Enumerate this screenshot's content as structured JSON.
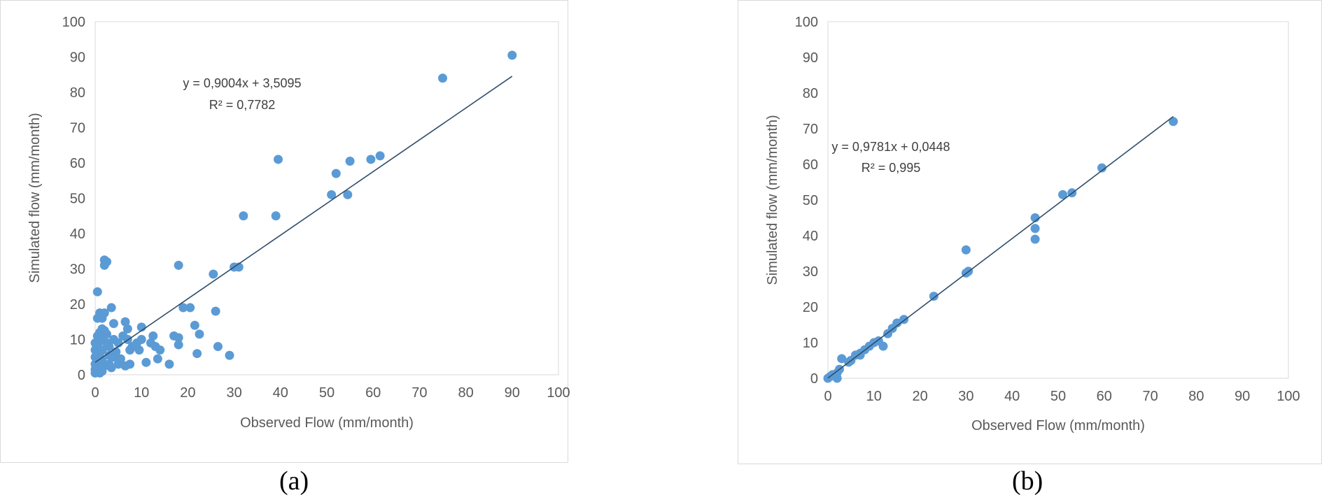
{
  "captions": [
    "(a)",
    "(b)"
  ],
  "colors": {
    "marker": "#5b9bd5",
    "trendline": "#2e4d6b",
    "plot_border": "#d9d9d9",
    "text": "#595959"
  },
  "chart_data": [
    {
      "type": "scatter",
      "title": "",
      "xlabel": "Observed Flow (mm/month)",
      "ylabel": "Simulated flow (mm/month)",
      "xlim": [
        0,
        100
      ],
      "ylim": [
        0,
        100
      ],
      "xticks": [
        "0",
        "10",
        "20",
        "30",
        "40",
        "50",
        "60",
        "70",
        "80",
        "90",
        "100"
      ],
      "yticks": [
        "0",
        "10",
        "20",
        "30",
        "40",
        "50",
        "60",
        "70",
        "80",
        "90",
        "100"
      ],
      "grid": false,
      "trendline": {
        "slope": 0.9004,
        "intercept": 3.5095,
        "x_range": [
          0,
          90
        ]
      },
      "annotations": [
        "y = 0,9004x + 3,5095",
        "R² = 0,7782"
      ],
      "points": [
        [
          90,
          90.5
        ],
        [
          75,
          84
        ],
        [
          61.5,
          62
        ],
        [
          59.5,
          61
        ],
        [
          55,
          60.5
        ],
        [
          52,
          57
        ],
        [
          51,
          51
        ],
        [
          54.5,
          51
        ],
        [
          39.5,
          61
        ],
        [
          39,
          45
        ],
        [
          32,
          45
        ],
        [
          30,
          30.5
        ],
        [
          31,
          30.5
        ],
        [
          25.5,
          28.5
        ],
        [
          18,
          31
        ],
        [
          26,
          18
        ],
        [
          26.5,
          8
        ],
        [
          29,
          5.5
        ],
        [
          20.5,
          19
        ],
        [
          19,
          19
        ],
        [
          21.5,
          14
        ],
        [
          22,
          6
        ],
        [
          22.5,
          11.5
        ],
        [
          18,
          10.5
        ],
        [
          17,
          11
        ],
        [
          18,
          8.5
        ],
        [
          16,
          3
        ],
        [
          14,
          7
        ],
        [
          13,
          8
        ],
        [
          13.5,
          4.5
        ],
        [
          12.5,
          11
        ],
        [
          12,
          9
        ],
        [
          11,
          3.5
        ],
        [
          10,
          13.5
        ],
        [
          10,
          10
        ],
        [
          9,
          9
        ],
        [
          9.5,
          7
        ],
        [
          8,
          8
        ],
        [
          7.5,
          7
        ],
        [
          7,
          13
        ],
        [
          7,
          10
        ],
        [
          6.5,
          15
        ],
        [
          6,
          11
        ],
        [
          7.5,
          3
        ],
        [
          6.5,
          2.5
        ],
        [
          5.5,
          4.5
        ],
        [
          5,
          9
        ],
        [
          5,
          3
        ],
        [
          4.5,
          6.5
        ],
        [
          4,
          14.5
        ],
        [
          3.5,
          19
        ],
        [
          4,
          10
        ],
        [
          4,
          5
        ],
        [
          3.5,
          2
        ],
        [
          3,
          8
        ],
        [
          3,
          5.5
        ],
        [
          3,
          3
        ],
        [
          2.5,
          11.5
        ],
        [
          2.5,
          9
        ],
        [
          2,
          12.5
        ],
        [
          2,
          31
        ],
        [
          2,
          32.5
        ],
        [
          2.5,
          32
        ],
        [
          2,
          17.5
        ],
        [
          1.5,
          16
        ],
        [
          1.5,
          13
        ],
        [
          1.5,
          10
        ],
        [
          1.5,
          7
        ],
        [
          1.5,
          4
        ],
        [
          1,
          17.5
        ],
        [
          1,
          12
        ],
        [
          1,
          9.5
        ],
        [
          1,
          6
        ],
        [
          1,
          3
        ],
        [
          0.5,
          23.5
        ],
        [
          0.5,
          16
        ],
        [
          0.5,
          11
        ],
        [
          0.5,
          8.5
        ],
        [
          0.5,
          6
        ],
        [
          0.5,
          3.5
        ],
        [
          0.5,
          1
        ],
        [
          0,
          9
        ],
        [
          0,
          7
        ],
        [
          0,
          5
        ],
        [
          0,
          3
        ],
        [
          0,
          1.5
        ],
        [
          0,
          0.5
        ],
        [
          1.5,
          1
        ],
        [
          2,
          2.5
        ],
        [
          1,
          0.5
        ]
      ]
    },
    {
      "type": "scatter",
      "title": "",
      "xlabel": "Observed Flow (mm/month)",
      "ylabel": "Simulated flow (mm/month)",
      "xlim": [
        0,
        100
      ],
      "ylim": [
        0,
        100
      ],
      "xticks": [
        "0",
        "10",
        "20",
        "30",
        "40",
        "50",
        "60",
        "70",
        "80",
        "90",
        "100"
      ],
      "yticks": [
        "0",
        "10",
        "20",
        "30",
        "40",
        "50",
        "60",
        "70",
        "80",
        "90",
        "100"
      ],
      "grid": false,
      "trendline": {
        "slope": 0.9781,
        "intercept": 0.0448,
        "x_range": [
          0,
          75
        ]
      },
      "annotations": [
        "y = 0,9781x + 0,0448",
        "R² = 0,995"
      ],
      "points": [
        [
          75,
          72
        ],
        [
          59.5,
          59
        ],
        [
          53,
          52
        ],
        [
          51,
          51.5
        ],
        [
          45,
          45
        ],
        [
          45,
          42
        ],
        [
          45,
          39
        ],
        [
          30,
          36
        ],
        [
          30.5,
          30
        ],
        [
          30,
          29.5
        ],
        [
          23,
          23
        ],
        [
          16.5,
          16.5
        ],
        [
          15,
          15.5
        ],
        [
          14,
          14
        ],
        [
          13,
          12.5
        ],
        [
          12,
          9
        ],
        [
          11,
          10.5
        ],
        [
          10,
          10
        ],
        [
          9,
          9
        ],
        [
          8,
          8
        ],
        [
          7,
          7
        ],
        [
          7,
          6.5
        ],
        [
          6,
          6.5
        ],
        [
          5,
          5
        ],
        [
          4.5,
          4.5
        ],
        [
          3,
          5.5
        ],
        [
          2.5,
          2.5
        ],
        [
          2,
          1.5
        ],
        [
          1.5,
          1
        ],
        [
          1,
          1
        ],
        [
          0.5,
          0.5
        ],
        [
          0,
          0
        ],
        [
          2,
          0
        ]
      ]
    }
  ]
}
